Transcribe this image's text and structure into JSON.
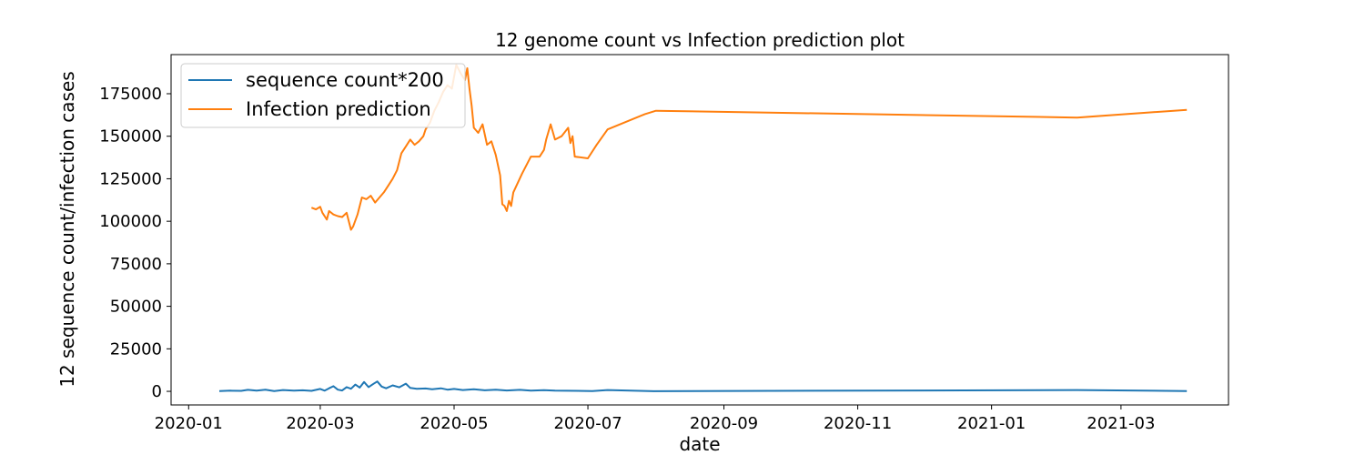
{
  "chart_data": {
    "type": "line",
    "title": "12 genome count vs Infection prediction plot",
    "xlabel": "date",
    "ylabel": "12 sequence count/infection cases",
    "xlim": [
      "2019-12-24",
      "2021-04-19"
    ],
    "ylim": [
      -8000,
      198000
    ],
    "x_ticks": [
      "2020-01",
      "2020-03",
      "2020-05",
      "2020-07",
      "2020-09",
      "2020-11",
      "2021-01",
      "2021-03"
    ],
    "y_ticks": [
      0,
      25000,
      50000,
      75000,
      100000,
      125000,
      150000,
      175000
    ],
    "grid": false,
    "legend_position": "top-left",
    "series": [
      {
        "name": "sequence count*200",
        "color": "#1f77b4",
        "points": [
          [
            "2020-01-15",
            200
          ],
          [
            "2020-01-20",
            400
          ],
          [
            "2020-01-25",
            300
          ],
          [
            "2020-01-28",
            900
          ],
          [
            "2020-02-01",
            400
          ],
          [
            "2020-02-05",
            1000
          ],
          [
            "2020-02-09",
            200
          ],
          [
            "2020-02-13",
            800
          ],
          [
            "2020-02-18",
            400
          ],
          [
            "2020-02-22",
            600
          ],
          [
            "2020-02-26",
            300
          ],
          [
            "2020-03-01",
            1400
          ],
          [
            "2020-03-03",
            400
          ],
          [
            "2020-03-05",
            1800
          ],
          [
            "2020-03-07",
            3000
          ],
          [
            "2020-03-09",
            1000
          ],
          [
            "2020-03-11",
            500
          ],
          [
            "2020-03-13",
            2500
          ],
          [
            "2020-03-15",
            1500
          ],
          [
            "2020-03-17",
            4000
          ],
          [
            "2020-03-19",
            2200
          ],
          [
            "2020-03-21",
            5500
          ],
          [
            "2020-03-23",
            2500
          ],
          [
            "2020-03-25",
            4200
          ],
          [
            "2020-03-27",
            5800
          ],
          [
            "2020-03-29",
            2800
          ],
          [
            "2020-03-31",
            1800
          ],
          [
            "2020-04-03",
            3500
          ],
          [
            "2020-04-06",
            2400
          ],
          [
            "2020-04-09",
            4500
          ],
          [
            "2020-04-11",
            2000
          ],
          [
            "2020-04-14",
            1500
          ],
          [
            "2020-04-18",
            1700
          ],
          [
            "2020-04-21",
            1200
          ],
          [
            "2020-04-25",
            1800
          ],
          [
            "2020-04-28",
            1000
          ],
          [
            "2020-05-01",
            1400
          ],
          [
            "2020-05-05",
            800
          ],
          [
            "2020-05-10",
            1200
          ],
          [
            "2020-05-15",
            600
          ],
          [
            "2020-05-20",
            1000
          ],
          [
            "2020-05-25",
            500
          ],
          [
            "2020-05-31",
            900
          ],
          [
            "2020-06-05",
            400
          ],
          [
            "2020-06-11",
            700
          ],
          [
            "2020-06-16",
            400
          ],
          [
            "2020-07-03",
            200
          ],
          [
            "2020-07-10",
            800
          ],
          [
            "2020-07-31",
            100
          ],
          [
            "2021-02-09",
            800
          ],
          [
            "2021-03-31",
            200
          ]
        ]
      },
      {
        "name": "Infection prediction",
        "color": "#ff7f0e",
        "points": [
          [
            "2020-02-26",
            108000
          ],
          [
            "2020-02-28",
            107000
          ],
          [
            "2020-03-01",
            108500
          ],
          [
            "2020-03-02",
            105000
          ],
          [
            "2020-03-04",
            101000
          ],
          [
            "2020-03-05",
            106000
          ],
          [
            "2020-03-07",
            104000
          ],
          [
            "2020-03-09",
            103000
          ],
          [
            "2020-03-11",
            102500
          ],
          [
            "2020-03-13",
            105000
          ],
          [
            "2020-03-15",
            95000
          ],
          [
            "2020-03-16",
            97000
          ],
          [
            "2020-03-18",
            104000
          ],
          [
            "2020-03-20",
            114000
          ],
          [
            "2020-03-22",
            113000
          ],
          [
            "2020-03-24",
            115000
          ],
          [
            "2020-03-26",
            111000
          ],
          [
            "2020-03-28",
            114000
          ],
          [
            "2020-03-30",
            117000
          ],
          [
            "2020-04-01",
            121000
          ],
          [
            "2020-04-03",
            125000
          ],
          [
            "2020-04-05",
            130000
          ],
          [
            "2020-04-07",
            140000
          ],
          [
            "2020-04-09",
            144000
          ],
          [
            "2020-04-11",
            148000
          ],
          [
            "2020-04-13",
            145000
          ],
          [
            "2020-04-15",
            147000
          ],
          [
            "2020-04-17",
            150000
          ],
          [
            "2020-04-18",
            154000
          ],
          [
            "2020-04-20",
            158000
          ],
          [
            "2020-04-22",
            165000
          ],
          [
            "2020-04-24",
            170000
          ],
          [
            "2020-04-26",
            176000
          ],
          [
            "2020-04-28",
            180000
          ],
          [
            "2020-04-30",
            178000
          ],
          [
            "2020-05-02",
            192000
          ],
          [
            "2020-05-04",
            187000
          ],
          [
            "2020-05-06",
            183000
          ],
          [
            "2020-05-07",
            190000
          ],
          [
            "2020-05-08",
            178000
          ],
          [
            "2020-05-09",
            168000
          ],
          [
            "2020-05-10",
            155000
          ],
          [
            "2020-05-12",
            152000
          ],
          [
            "2020-05-14",
            157000
          ],
          [
            "2020-05-16",
            145000
          ],
          [
            "2020-05-18",
            147000
          ],
          [
            "2020-05-20",
            139000
          ],
          [
            "2020-05-22",
            127000
          ],
          [
            "2020-05-23",
            110000
          ],
          [
            "2020-05-24",
            109000
          ],
          [
            "2020-05-25",
            106000
          ],
          [
            "2020-05-26",
            112000
          ],
          [
            "2020-05-27",
            109000
          ],
          [
            "2020-05-28",
            117000
          ],
          [
            "2020-06-01",
            128000
          ],
          [
            "2020-06-05",
            138000
          ],
          [
            "2020-06-09",
            138000
          ],
          [
            "2020-06-11",
            142000
          ],
          [
            "2020-06-12",
            148000
          ],
          [
            "2020-06-14",
            157000
          ],
          [
            "2020-06-16",
            148000
          ],
          [
            "2020-06-19",
            150000
          ],
          [
            "2020-06-22",
            155000
          ],
          [
            "2020-06-23",
            146000
          ],
          [
            "2020-06-24",
            150000
          ],
          [
            "2020-06-25",
            138000
          ],
          [
            "2020-07-01",
            137000
          ],
          [
            "2020-07-05",
            145000
          ],
          [
            "2020-07-10",
            154000
          ],
          [
            "2020-07-27",
            163000
          ],
          [
            "2020-08-01",
            165000
          ],
          [
            "2021-02-09",
            161000
          ],
          [
            "2021-03-31",
            165500
          ]
        ]
      }
    ]
  }
}
